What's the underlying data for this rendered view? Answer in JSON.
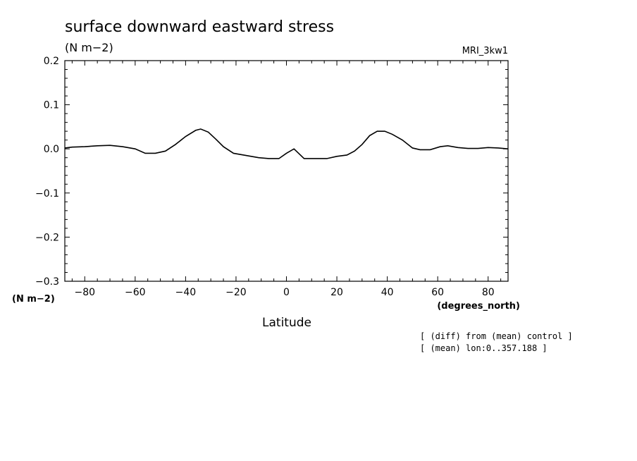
{
  "chart_data": {
    "type": "line",
    "title": "surface downward eastward stress",
    "subtitle": "(N m−2)",
    "model_label": "MRI_3kw1",
    "ylabel": "(N m−2)",
    "xlabel": "Latitude",
    "x_units": "(degrees_north)",
    "xlim": [
      -87.9,
      87.9
    ],
    "ylim": [
      -0.3,
      0.2
    ],
    "x_ticks": [
      -80,
      -60,
      -40,
      -20,
      0,
      20,
      40,
      60,
      80
    ],
    "x_tick_labels": [
      "−80",
      "−60",
      "−40",
      "−20",
      "0",
      "20",
      "40",
      "60",
      "80"
    ],
    "y_ticks": [
      -0.3,
      -0.2,
      -0.1,
      0.0,
      0.1,
      0.2
    ],
    "y_tick_labels": [
      "−0.3",
      "−0.2",
      "−0.1",
      "0.0",
      "0.1",
      "0.2"
    ],
    "notes": [
      "[ (diff) from (mean) control ]",
      "[ (mean) lon:0..357.188 ]"
    ],
    "series": [
      {
        "name": "surface downward eastward stress",
        "x": [
          -87.9,
          -85,
          -80,
          -75,
          -70,
          -65,
          -60,
          -56,
          -52,
          -48,
          -44,
          -40,
          -36,
          -34,
          -31,
          -28,
          -25,
          -21,
          -16,
          -11,
          -7,
          -3,
          0,
          3,
          7,
          12,
          16,
          20,
          24,
          27,
          30,
          33,
          36,
          39,
          42,
          46,
          50,
          53,
          57,
          61,
          64,
          68,
          72,
          76,
          80,
          84,
          87.9
        ],
        "y": [
          0.002,
          0.004,
          0.005,
          0.007,
          0.008,
          0.005,
          0.0,
          -0.01,
          -0.01,
          -0.005,
          0.01,
          0.028,
          0.042,
          0.045,
          0.038,
          0.022,
          0.005,
          -0.01,
          -0.015,
          -0.02,
          -0.022,
          -0.022,
          -0.01,
          0.0,
          -0.022,
          -0.022,
          -0.022,
          -0.017,
          -0.014,
          -0.005,
          0.01,
          0.03,
          0.04,
          0.04,
          0.033,
          0.02,
          0.002,
          -0.002,
          -0.002,
          0.005,
          0.007,
          0.003,
          0.001,
          0.001,
          0.003,
          0.002,
          0.0
        ]
      }
    ]
  }
}
